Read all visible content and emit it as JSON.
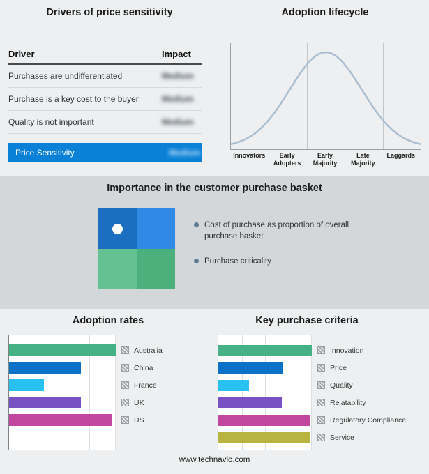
{
  "page": {
    "footer_url": "www.technavio.com",
    "background": "#edeff0",
    "band_background": "#d4d7d9"
  },
  "drivers": {
    "title": "Drivers of price sensitivity",
    "col_driver": "Driver",
    "col_impact": "Impact",
    "rows": [
      {
        "driver": "Purchases are undifferentiated",
        "impact": "Medium"
      },
      {
        "driver": "Purchase is a key cost to the buyer",
        "impact": "Medium"
      },
      {
        "driver": "Quality is not important",
        "impact": "Medium"
      }
    ],
    "highlight": {
      "driver": "Price Sensitivity",
      "impact": "Medium",
      "color": "#0a80d6"
    }
  },
  "lifecycle": {
    "title": "Adoption lifecycle",
    "stages": [
      "Innovators",
      "Early Adopters",
      "Early Majority",
      "Late Majority",
      "Laggards"
    ],
    "curve_color": "#a9bed3"
  },
  "basket": {
    "title": "Importance in the customer purchase basket",
    "bullets": [
      "Cost of purchase as proportion of overall purchase basket",
      "Purchase criticality"
    ],
    "quadrant": {
      "top_left": "#1b6ec2",
      "top_right": "#2f89e5",
      "bottom_left": "#63c192",
      "bottom_right": "#4bb07c"
    }
  },
  "chart_data": [
    {
      "id": "adoption_lifecycle",
      "type": "line",
      "title": "Adoption lifecycle",
      "categories": [
        "Innovators",
        "Early Adopters",
        "Early Majority",
        "Late Majority",
        "Laggards"
      ],
      "shape": "bell-curve",
      "peak_stage": "Early Majority",
      "grid": "vertical-stage-dividers",
      "line_color": "#a9bed3"
    },
    {
      "id": "adoption_rates",
      "type": "bar",
      "orientation": "horizontal",
      "title": "Adoption rates",
      "categories": [
        "Australia",
        "China",
        "France",
        "UK",
        "US"
      ],
      "values": [
        100,
        67,
        33,
        67,
        97
      ],
      "colors": [
        "#45b184",
        "#0b72c8",
        "#29c1f2",
        "#7852c2",
        "#c2479f"
      ],
      "xlim": [
        0,
        100
      ],
      "grid": "vertical",
      "legend_position": "right"
    },
    {
      "id": "key_purchase_criteria",
      "type": "bar",
      "orientation": "horizontal",
      "title": "Key purchase criteria",
      "categories": [
        "Innovation",
        "Price",
        "Quality",
        "Relatability",
        "Regulatory Compliance",
        "Service"
      ],
      "values": [
        100,
        69,
        33,
        68,
        98,
        98
      ],
      "colors": [
        "#45b184",
        "#0b72c8",
        "#29c1f2",
        "#7852c2",
        "#c2479f",
        "#b9b440"
      ],
      "xlim": [
        0,
        100
      ],
      "grid": "vertical",
      "legend_position": "right"
    }
  ]
}
